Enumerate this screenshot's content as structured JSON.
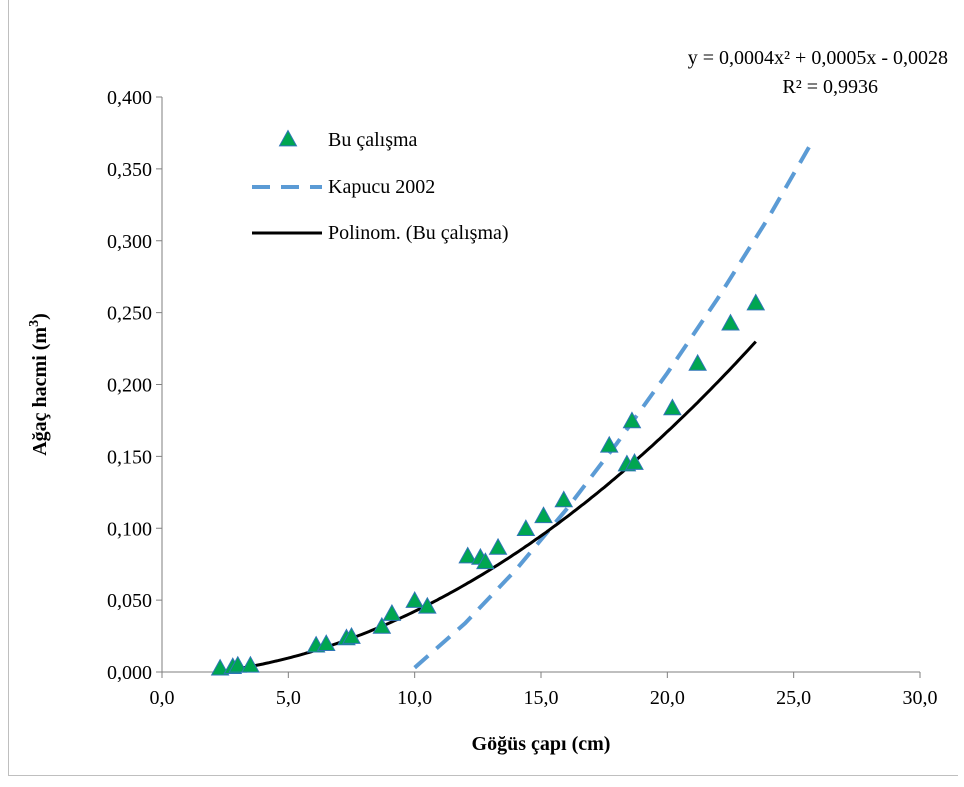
{
  "chart_data": {
    "type": "scatter",
    "xlabel": "Göğüs çapı (cm)",
    "ylabel": "Ağaç hacmi (m³)",
    "xlim": [
      0,
      30
    ],
    "ylim": [
      0,
      0.4
    ],
    "xticks": [
      0,
      5,
      10,
      15,
      20,
      25,
      30
    ],
    "xtick_labels": [
      "0,0",
      "5,0",
      "10,0",
      "15,0",
      "20,0",
      "25,0",
      "30,0"
    ],
    "yticks": [
      0,
      0.05,
      0.1,
      0.15,
      0.2,
      0.25,
      0.3,
      0.35,
      0.4
    ],
    "ytick_labels": [
      "0,000",
      "0,050",
      "0,100",
      "0,150",
      "0,200",
      "0,250",
      "0,300",
      "0,350",
      "0,400"
    ],
    "grid": false,
    "legend_position": "upper-left inside plot",
    "annotation": {
      "equation": "y = 0,0004x² + 0,0005x - 0,0028",
      "r2": "R² = 0,9936"
    },
    "series": [
      {
        "name": "Bu çalışma",
        "kind": "scatter",
        "marker": "triangle",
        "color": "#00a651",
        "edge_color": "#2e75b6",
        "x": [
          2.3,
          2.8,
          3.0,
          3.5,
          6.1,
          6.5,
          7.3,
          7.5,
          8.7,
          9.1,
          10.0,
          10.5,
          12.1,
          12.6,
          12.8,
          13.3,
          14.4,
          15.1,
          15.9,
          17.7,
          18.4,
          18.6,
          18.7,
          20.2,
          21.2,
          22.5,
          23.5
        ],
        "y": [
          0.002,
          0.003,
          0.004,
          0.004,
          0.018,
          0.019,
          0.023,
          0.024,
          0.031,
          0.04,
          0.049,
          0.045,
          0.08,
          0.079,
          0.076,
          0.086,
          0.099,
          0.108,
          0.119,
          0.157,
          0.144,
          0.174,
          0.145,
          0.183,
          0.214,
          0.242,
          0.256
        ]
      },
      {
        "name": "Kapucu 2002",
        "kind": "line",
        "dash": true,
        "color": "#5b9bd5",
        "x": [
          10.0,
          12.0,
          14.0,
          16.0,
          18.0,
          20.0,
          22.0,
          24.0,
          25.8
        ],
        "y": [
          0.003,
          0.034,
          0.071,
          0.113,
          0.159,
          0.208,
          0.26,
          0.316,
          0.371
        ]
      },
      {
        "name": "Polinom. (Bu çalışma)",
        "kind": "line",
        "color": "#000000",
        "coefficients": [
          0.0004,
          0.0005,
          -0.0028
        ],
        "x_range": [
          2.3,
          23.5
        ]
      }
    ]
  }
}
